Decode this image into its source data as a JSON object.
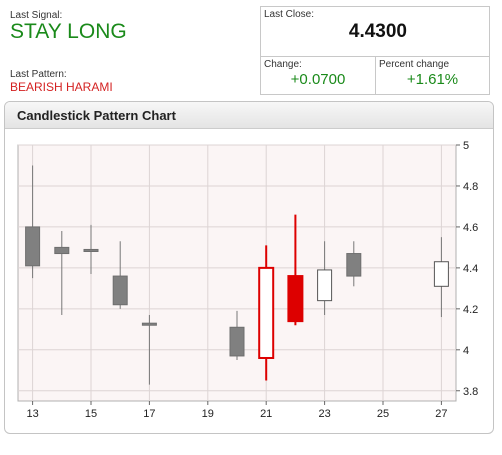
{
  "signal": {
    "label": "Last Signal:",
    "value": "STAY LONG"
  },
  "pattern": {
    "label": "Last Pattern:",
    "value": "BEARISH HARAMI"
  },
  "quote": {
    "close_label": "Last Close:",
    "close_value": "4.4300",
    "change_label": "Change:",
    "change_value": "+0.0700",
    "pct_label": "Percent change",
    "pct_value": "+1.61%"
  },
  "panel": {
    "title": "Candlestick Pattern Chart"
  },
  "colors": {
    "bearish": "#808080",
    "bullish": "#ffffff",
    "signal": "#dd0000",
    "up_text": "#1a8a1a",
    "down_text": "#d42222"
  },
  "chart_data": {
    "type": "candlestick",
    "xlim": [
      12.5,
      27.5
    ],
    "ylim": [
      3.75,
      5.0
    ],
    "xticks": [
      13,
      15,
      17,
      19,
      21,
      23,
      25,
      27
    ],
    "yticks": [
      3.8,
      4,
      4.2,
      4.4,
      4.6,
      4.8,
      5
    ],
    "ytick_labels": [
      "3.8",
      "4",
      "4.2",
      "4.4",
      "4.6",
      "4.8",
      "5"
    ],
    "grid": true,
    "y_axis_side": "right",
    "candles": [
      {
        "x": 13,
        "open": 4.6,
        "close": 4.41,
        "high": 4.9,
        "low": 4.35
      },
      {
        "x": 14,
        "open": 4.5,
        "close": 4.47,
        "high": 4.58,
        "low": 4.17
      },
      {
        "x": 15,
        "open": 4.49,
        "close": 4.48,
        "high": 4.61,
        "low": 4.37
      },
      {
        "x": 16,
        "open": 4.36,
        "close": 4.22,
        "high": 4.53,
        "low": 4.2
      },
      {
        "x": 17,
        "open": 4.13,
        "close": 4.12,
        "high": 4.17,
        "low": 3.83
      },
      {
        "x": 20,
        "open": 4.11,
        "close": 3.97,
        "high": 4.19,
        "low": 3.95
      },
      {
        "x": 21,
        "open": 3.96,
        "close": 4.4,
        "high": 4.51,
        "low": 3.85,
        "highlight": true
      },
      {
        "x": 22,
        "open": 4.36,
        "close": 4.14,
        "high": 4.66,
        "low": 4.12,
        "highlight": true
      },
      {
        "x": 23,
        "open": 4.24,
        "close": 4.39,
        "high": 4.53,
        "low": 4.17
      },
      {
        "x": 24,
        "open": 4.47,
        "close": 4.36,
        "high": 4.53,
        "low": 4.31
      },
      {
        "x": 27,
        "open": 4.31,
        "close": 4.43,
        "high": 4.55,
        "low": 4.16
      }
    ]
  }
}
